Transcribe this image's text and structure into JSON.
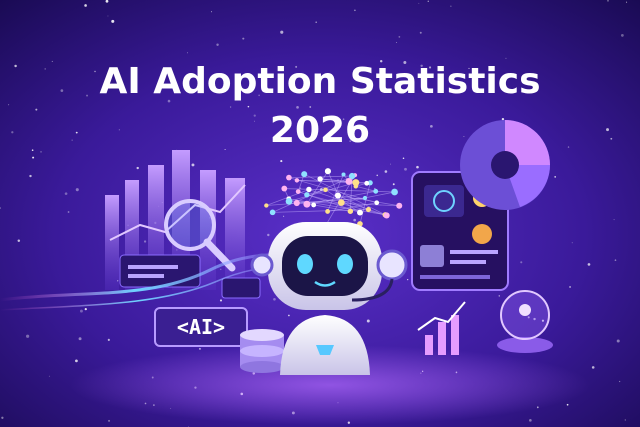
{
  "title": {
    "line1": "AI Adoption Statistics",
    "line2": "2026"
  },
  "badge": "<AI>"
}
